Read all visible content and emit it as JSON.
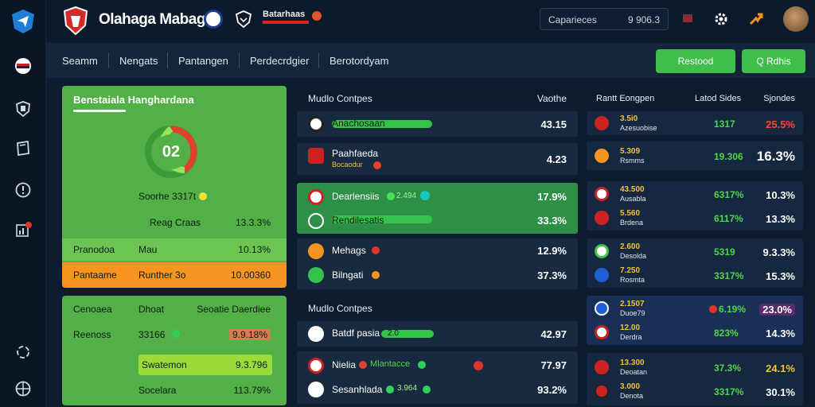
{
  "colors": {
    "accent_green": "#52b046",
    "accent_orange": "#f5941f",
    "danger": "#e0332c",
    "background": "#0d1b2e"
  },
  "topbar": {
    "title": "Olahaga Mabagi",
    "brand_text": "Batarhaas",
    "search_label": "Caparieces",
    "search_value": "9 906.3"
  },
  "nav": {
    "items": [
      "Seamm",
      "Nengats",
      "Pantangen",
      "Perdecrdgier",
      "Berotordyam"
    ],
    "btn_primary": "Restood",
    "btn_secondary": "Q Rdhis"
  },
  "left_panel": {
    "title": "Benstaiala Hanghardana",
    "gauge_value": "02",
    "score_label": "Soorhe 3317t",
    "rows": [
      {
        "label": "Reag Craas",
        "value": "13.3.3%"
      },
      {
        "label": "Pranodoa",
        "mid": "Mau",
        "value": "10.13%"
      },
      {
        "label": "Pantaame",
        "mid": "Runther 3o",
        "value": "10.00360"
      }
    ]
  },
  "left_panel2": {
    "headers": [
      "Cenoaea",
      "Dhoat",
      "Seoatie Daerdiee"
    ],
    "rows": [
      {
        "label": "Reenoss",
        "mid": "33166",
        "value": "9.9.18%"
      },
      {
        "label": "",
        "mid": "Swatemon",
        "value": "9.3.796"
      },
      {
        "label": "",
        "mid": "Socelara",
        "value": "113.79%"
      }
    ]
  },
  "mid_panel1": {
    "title": "Mudlo Contpes",
    "col": "Vaothe",
    "rows": [
      {
        "name": "Anachosaan",
        "value": "43.15"
      },
      {
        "name": "Paahfaeda",
        "sub": "Bocaodur",
        "value": "4.23"
      },
      {
        "name": "Dearlensiis",
        "tag": "2.494",
        "value": "17.9%"
      },
      {
        "name": "Rendilesatis",
        "value": "33.3%"
      },
      {
        "name": "Mehags",
        "value": "12.9%"
      },
      {
        "name": "Bilngati",
        "value": "37.3%"
      }
    ]
  },
  "mid_panel2": {
    "title": "Mudlo Contpes",
    "rows": [
      {
        "name": "Batdf pasia",
        "tag": "2.0",
        "value": "42.97"
      },
      {
        "name": "Nielia",
        "tag": "Mlantacce",
        "value": "77.97"
      },
      {
        "name": "Sesanhlada",
        "tag": "3.964",
        "value": "93.2%"
      }
    ]
  },
  "right_panel": {
    "headers": [
      "Rantt Eongpen",
      "Latod Sides",
      "Sjondes"
    ],
    "rows": [
      {
        "t1": "3.5i0",
        "t2": "Azesuobise",
        "c2": "1317",
        "c3": "25.5%"
      },
      {
        "t1": "5.309",
        "t2": "Rsmms",
        "c2": "19.306",
        "c3": "16.3%"
      },
      {
        "t1": "43.500",
        "t2": "Ausabla",
        "c2": "6317%",
        "c3": "10.3%"
      },
      {
        "t1": "5.560",
        "t2": "Brdena",
        "c2": "6117%",
        "c3": "13.3%"
      },
      {
        "t1": "2.600",
        "t2": "Desolda",
        "c2": "5319",
        "c3": "9.3.3%"
      },
      {
        "t1": "7.250",
        "t2": "Rosmta",
        "c2": "3317%",
        "c3": "15.3%"
      },
      {
        "t1": "2.1507",
        "t2": "Duoe79",
        "c2": "6.19%",
        "c3": "23.0%"
      },
      {
        "t1": "12.00",
        "t2": "Derdra",
        "c2": "823%",
        "c3": "14.3%"
      },
      {
        "t1": "13.300",
        "t2": "Deoatan",
        "c2": "37.3%",
        "c3": "24.1%"
      },
      {
        "t1": "3.000",
        "t2": "Denota",
        "c2": "3317%",
        "c3": "30.1%"
      }
    ]
  }
}
